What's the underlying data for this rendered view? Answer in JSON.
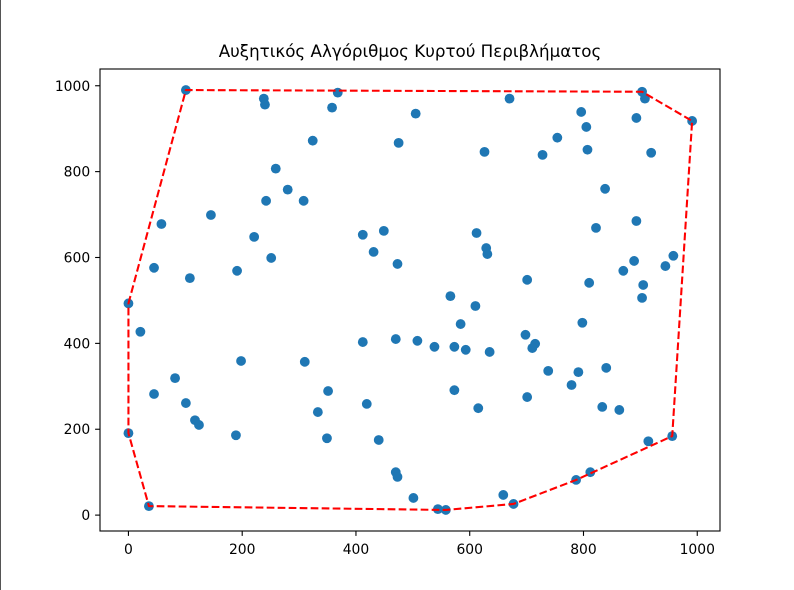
{
  "chart_data": {
    "type": "scatter",
    "title": "Αυξητικός Αλγόριθμος Κυρτού Περιβλήματος",
    "xlim": [
      -50,
      1040
    ],
    "ylim": [
      -37,
      1039
    ],
    "xticks": [
      0,
      200,
      400,
      600,
      800,
      1000
    ],
    "yticks": [
      0,
      200,
      400,
      600,
      800,
      1000
    ],
    "grid": false,
    "series": [
      {
        "type": "scatter",
        "color": "#1f77b4",
        "points": [
          [
            0,
            493
          ],
          [
            101,
            990
          ],
          [
            903,
            986
          ],
          [
            991,
            918
          ],
          [
            956,
            184
          ],
          [
            787,
            82
          ],
          [
            677,
            26
          ],
          [
            558,
            12
          ],
          [
            36,
            21
          ],
          [
            0,
            191
          ],
          [
            238,
            970
          ],
          [
            240,
            956
          ],
          [
            368,
            984
          ],
          [
            358,
            949
          ],
          [
            505,
            935
          ],
          [
            670,
            970
          ],
          [
            908,
            970
          ],
          [
            796,
            939
          ],
          [
            805,
            904
          ],
          [
            893,
            925
          ],
          [
            754,
            879
          ],
          [
            728,
            839
          ],
          [
            626,
            846
          ],
          [
            475,
            867
          ],
          [
            324,
            872
          ],
          [
            807,
            851
          ],
          [
            919,
            844
          ],
          [
            259,
            807
          ],
          [
            280,
            758
          ],
          [
            838,
            760
          ],
          [
            242,
            732
          ],
          [
            308,
            732
          ],
          [
            145,
            699
          ],
          [
            58,
            678
          ],
          [
            221,
            648
          ],
          [
            412,
            653
          ],
          [
            449,
            662
          ],
          [
            612,
            657
          ],
          [
            629,
            622
          ],
          [
            631,
            608
          ],
          [
            893,
            685
          ],
          [
            822,
            669
          ],
          [
            431,
            613
          ],
          [
            251,
            599
          ],
          [
            473,
            585
          ],
          [
            45,
            576
          ],
          [
            191,
            569
          ],
          [
            108,
            552
          ],
          [
            701,
            548
          ],
          [
            889,
            592
          ],
          [
            958,
            604
          ],
          [
            870,
            569
          ],
          [
            905,
            536
          ],
          [
            810,
            541
          ],
          [
            903,
            506
          ],
          [
            944,
            580
          ],
          [
            566,
            510
          ],
          [
            610,
            487
          ],
          [
            584,
            445
          ],
          [
            798,
            448
          ],
          [
            21,
            427
          ],
          [
            698,
            420
          ],
          [
            715,
            399
          ],
          [
            710,
            389
          ],
          [
            412,
            403
          ],
          [
            470,
            410
          ],
          [
            508,
            406
          ],
          [
            538,
            392
          ],
          [
            573,
            392
          ],
          [
            593,
            385
          ],
          [
            635,
            380
          ],
          [
            198,
            359
          ],
          [
            310,
            357
          ],
          [
            738,
            336
          ],
          [
            791,
            333
          ],
          [
            840,
            343
          ],
          [
            82,
            319
          ],
          [
            779,
            303
          ],
          [
            351,
            289
          ],
          [
            573,
            291
          ],
          [
            45,
            282
          ],
          [
            701,
            275
          ],
          [
            101,
            261
          ],
          [
            419,
            259
          ],
          [
            615,
            249
          ],
          [
            833,
            252
          ],
          [
            863,
            245
          ],
          [
            333,
            240
          ],
          [
            117,
            221
          ],
          [
            124,
            210
          ],
          [
            189,
            186
          ],
          [
            349,
            179
          ],
          [
            440,
            175
          ],
          [
            914,
            172
          ],
          [
            470,
            100
          ],
          [
            473,
            89
          ],
          [
            812,
            100
          ],
          [
            501,
            40
          ],
          [
            659,
            47
          ],
          [
            544,
            14
          ]
        ]
      },
      {
        "type": "line",
        "linestyle": "dashed",
        "color": "#ff0000",
        "points": [
          [
            0,
            493
          ],
          [
            101,
            990
          ],
          [
            903,
            986
          ],
          [
            991,
            918
          ],
          [
            956,
            184
          ],
          [
            787,
            82
          ],
          [
            677,
            26
          ],
          [
            558,
            12
          ],
          [
            36,
            21
          ],
          [
            0,
            191
          ],
          [
            0,
            493
          ]
        ]
      }
    ]
  }
}
